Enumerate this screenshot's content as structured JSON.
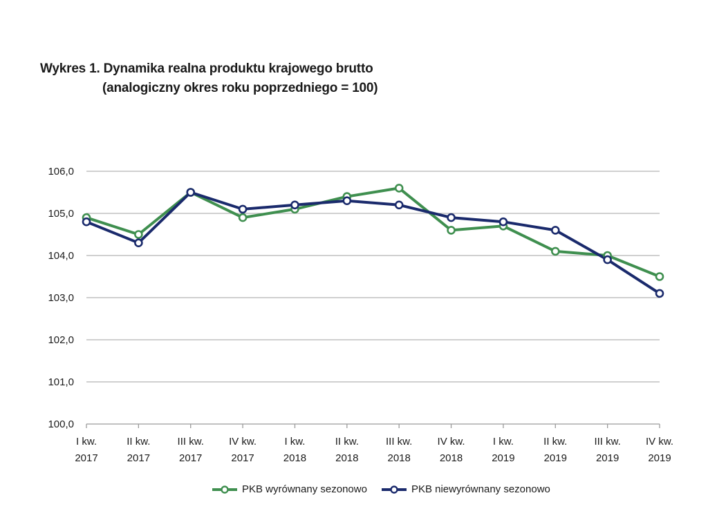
{
  "chart_data": {
    "type": "line",
    "title": "Wykres 1. Dynamika realna produktu krajowego brutto",
    "subtitle": "(analogiczny okres roku poprzedniego = 100)",
    "xlabel": "",
    "ylabel": "",
    "categories": [
      [
        "I kw.",
        "2017"
      ],
      [
        "II kw.",
        "2017"
      ],
      [
        "III kw.",
        "2017"
      ],
      [
        "IV kw.",
        "2017"
      ],
      [
        "I kw.",
        "2018"
      ],
      [
        "II kw.",
        "2018"
      ],
      [
        "III kw.",
        "2018"
      ],
      [
        "IV kw.",
        "2018"
      ],
      [
        "I kw.",
        "2019"
      ],
      [
        "II kw.",
        "2019"
      ],
      [
        "III kw.",
        "2019"
      ],
      [
        "IV kw.",
        "2019"
      ]
    ],
    "ylim": [
      100,
      106
    ],
    "yticks": [
      "100,0",
      "101,0",
      "102,0",
      "103,0",
      "104,0",
      "105,0",
      "106,0"
    ],
    "grid": true,
    "legend_position": "bottom",
    "series": [
      {
        "name": "PKB wyrównany sezonowo",
        "color": "#3f8f4f",
        "values": [
          104.9,
          104.5,
          105.5,
          104.9,
          105.1,
          105.4,
          105.6,
          104.6,
          104.7,
          104.1,
          104.0,
          103.5
        ]
      },
      {
        "name": "PKB niewyrównany sezonowo",
        "color": "#1a2a6c",
        "values": [
          104.8,
          104.3,
          105.5,
          105.1,
          105.2,
          105.3,
          105.2,
          104.9,
          104.8,
          104.6,
          103.9,
          103.1
        ]
      }
    ]
  }
}
